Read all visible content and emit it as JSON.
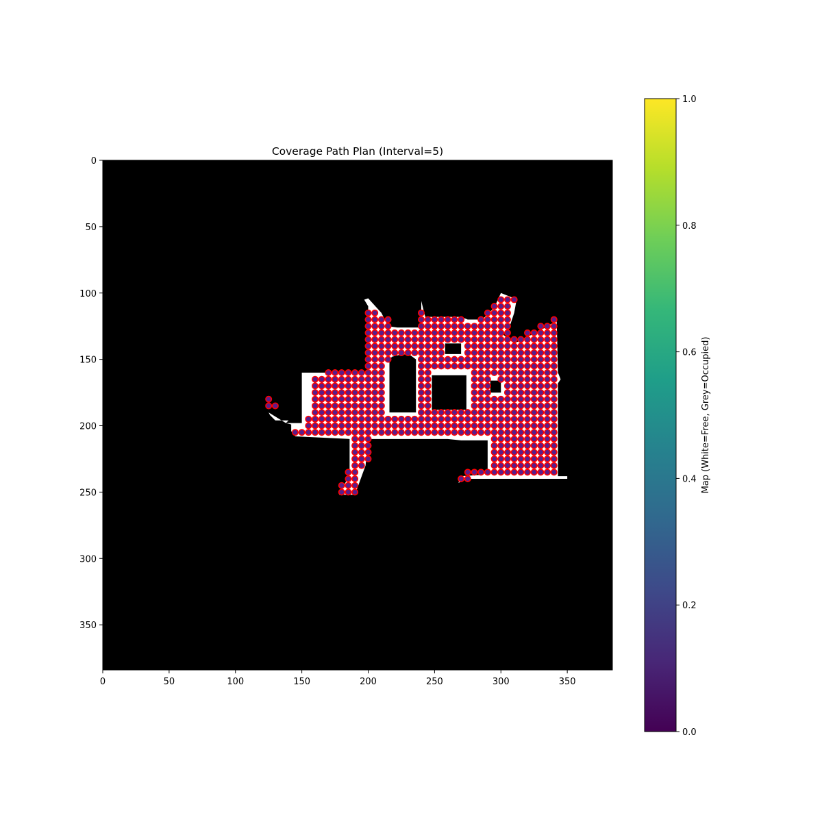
{
  "chart_data": {
    "type": "heatmap",
    "title": "Coverage Path Plan (Interval=5)",
    "image_extent": [
      384,
      384
    ],
    "xlim": [
      0,
      384
    ],
    "ylim": [
      384,
      0
    ],
    "x_ticks": [
      0,
      50,
      100,
      150,
      200,
      250,
      300,
      350
    ],
    "y_ticks": [
      0,
      50,
      100,
      150,
      200,
      250,
      300,
      350
    ],
    "grid": false,
    "background_color": "#000000",
    "free_color": "#ffffff",
    "point_fill": "#5b1d8a",
    "point_edge": "#ff0000",
    "colorbar": {
      "label": "Map (White=Free, Grey=Occupied)",
      "ticks": [
        "0.0",
        "0.2",
        "0.4",
        "0.6",
        "0.8",
        "1.0"
      ],
      "range": [
        0,
        1
      ],
      "colormap": "viridis",
      "stops": [
        "#440154",
        "#482777",
        "#3e4989",
        "#31688e",
        "#26828e",
        "#1f9e89",
        "#35b779",
        "#6ece58",
        "#b5de2b",
        "#fde725"
      ]
    },
    "free_polygons": [
      [
        [
          150,
          160
        ],
        [
          200,
          160
        ],
        [
          200,
          110
        ],
        [
          197,
          105
        ],
        [
          200,
          104
        ],
        [
          210,
          115
        ],
        [
          215,
          125
        ],
        [
          222,
          126
        ],
        [
          240,
          126
        ],
        [
          240,
          106
        ],
        [
          243,
          118
        ],
        [
          270,
          118
        ],
        [
          275,
          120
        ],
        [
          286,
          120
        ],
        [
          295,
          111
        ],
        [
          300,
          100
        ],
        [
          310,
          104
        ],
        [
          312,
          104
        ],
        [
          310,
          115
        ],
        [
          305,
          130
        ],
        [
          300,
          130
        ],
        [
          310,
          138
        ],
        [
          330,
          128
        ],
        [
          340,
          122
        ],
        [
          342,
          120
        ],
        [
          343,
          160
        ],
        [
          345,
          165
        ],
        [
          343,
          168
        ],
        [
          343,
          238
        ],
        [
          350,
          238
        ],
        [
          350,
          240
        ],
        [
          275,
          240
        ],
        [
          268,
          243
        ],
        [
          270,
          238
        ],
        [
          285,
          237
        ],
        [
          290,
          235
        ],
        [
          290,
          211
        ],
        [
          270,
          211
        ],
        [
          260,
          210
        ],
        [
          200,
          210
        ],
        [
          200,
          212
        ],
        [
          198,
          230
        ],
        [
          190,
          252
        ],
        [
          178,
          252
        ],
        [
          186,
          237
        ],
        [
          186,
          210
        ],
        [
          145,
          208
        ],
        [
          142,
          204
        ],
        [
          142,
          199
        ],
        [
          138,
          198
        ],
        [
          140,
          196
        ],
        [
          130,
          196
        ],
        [
          126,
          192
        ],
        [
          125,
          190
        ],
        [
          138,
          198
        ],
        [
          150,
          198
        ]
      ]
    ],
    "obstacles": [
      [
        [
          216,
          150
        ],
        [
          218,
          148
        ],
        [
          226,
          146
        ],
        [
          232,
          147
        ],
        [
          236,
          150
        ],
        [
          236,
          190
        ],
        [
          216,
          190
        ]
      ],
      [
        [
          248,
          162
        ],
        [
          274,
          162
        ],
        [
          274,
          188
        ],
        [
          248,
          188
        ]
      ],
      [
        [
          258,
          138
        ],
        [
          270,
          138
        ],
        [
          270,
          146
        ],
        [
          258,
          146
        ]
      ],
      [
        [
          292,
          166
        ],
        [
          300,
          166
        ],
        [
          300,
          175
        ],
        [
          292,
          175
        ]
      ]
    ],
    "interval": 5,
    "points": [
      {
        "y": 105,
        "xs": [
          300,
          305,
          310
        ]
      },
      {
        "y": 110,
        "xs": [
          295,
          300,
          305
        ]
      },
      {
        "y": 115,
        "xs": [
          200,
          205,
          240,
          290,
          295,
          300,
          305
        ]
      },
      {
        "y": 120,
        "xs": [
          200,
          205,
          210,
          215,
          240,
          245,
          250,
          255,
          260,
          265,
          270,
          285,
          290,
          295,
          300,
          305,
          340
        ]
      },
      {
        "y": 125,
        "xs": [
          200,
          205,
          210,
          215,
          240,
          245,
          250,
          255,
          260,
          265,
          270,
          275,
          280,
          285,
          290,
          295,
          300,
          305,
          330,
          335,
          340
        ]
      },
      {
        "y": 130,
        "xs": [
          200,
          205,
          210,
          215,
          220,
          225,
          230,
          235,
          240,
          245,
          250,
          255,
          260,
          265,
          270,
          275,
          280,
          285,
          290,
          295,
          300,
          305,
          320,
          325,
          330,
          335,
          340
        ]
      },
      {
        "y": 135,
        "xs": [
          200,
          205,
          210,
          215,
          220,
          225,
          230,
          235,
          240,
          245,
          250,
          255,
          260,
          265,
          270,
          275,
          280,
          285,
          290,
          295,
          300,
          305,
          310,
          315,
          320,
          325,
          330,
          335,
          340
        ]
      },
      {
        "y": 140,
        "xs": [
          200,
          205,
          210,
          215,
          220,
          225,
          230,
          235,
          240,
          245,
          250,
          255,
          275,
          280,
          285,
          290,
          295,
          300,
          305,
          310,
          315,
          320,
          325,
          330,
          335,
          340
        ]
      },
      {
        "y": 145,
        "xs": [
          200,
          205,
          210,
          215,
          220,
          225,
          230,
          235,
          240,
          245,
          250,
          255,
          275,
          280,
          285,
          290,
          295,
          300,
          305,
          310,
          315,
          320,
          325,
          330,
          335,
          340
        ]
      },
      {
        "y": 150,
        "xs": [
          200,
          205,
          210,
          215,
          240,
          245,
          250,
          255,
          260,
          265,
          270,
          275,
          280,
          285,
          290,
          295,
          300,
          305,
          310,
          315,
          320,
          325,
          330,
          335,
          340
        ]
      },
      {
        "y": 155,
        "xs": [
          200,
          205,
          210,
          240,
          245,
          250,
          255,
          260,
          265,
          270,
          275,
          280,
          285,
          290,
          295,
          300,
          305,
          310,
          315,
          320,
          325,
          330,
          335,
          340
        ]
      },
      {
        "y": 160,
        "xs": [
          170,
          175,
          180,
          185,
          190,
          195,
          200,
          205,
          210,
          240,
          245,
          280,
          285,
          290,
          295,
          300,
          305,
          310,
          315,
          320,
          325,
          330,
          335,
          340
        ]
      },
      {
        "y": 165,
        "xs": [
          160,
          165,
          170,
          175,
          180,
          185,
          190,
          195,
          200,
          205,
          210,
          240,
          245,
          280,
          285,
          290,
          300,
          305,
          310,
          315,
          320,
          325,
          330,
          335,
          340
        ]
      },
      {
        "y": 170,
        "xs": [
          160,
          165,
          170,
          175,
          180,
          185,
          190,
          195,
          200,
          205,
          210,
          240,
          245,
          280,
          285,
          290,
          305,
          310,
          315,
          320,
          325,
          330,
          335,
          340
        ]
      },
      {
        "y": 175,
        "xs": [
          160,
          165,
          170,
          175,
          180,
          185,
          190,
          195,
          200,
          205,
          210,
          240,
          245,
          280,
          285,
          290,
          305,
          310,
          315,
          320,
          325,
          330,
          335,
          340
        ]
      },
      {
        "y": 180,
        "xs": [
          125,
          160,
          165,
          170,
          175,
          180,
          185,
          190,
          195,
          200,
          205,
          210,
          240,
          245,
          280,
          285,
          290,
          295,
          300,
          305,
          310,
          315,
          320,
          325,
          330,
          335,
          340
        ]
      },
      {
        "y": 185,
        "xs": [
          125,
          130,
          160,
          165,
          170,
          175,
          180,
          185,
          190,
          195,
          200,
          205,
          210,
          240,
          245,
          280,
          285,
          290,
          295,
          300,
          305,
          310,
          315,
          320,
          325,
          330,
          335,
          340
        ]
      },
      {
        "y": 190,
        "xs": [
          160,
          165,
          170,
          175,
          180,
          185,
          190,
          195,
          200,
          205,
          210,
          240,
          245,
          250,
          255,
          260,
          265,
          270,
          275,
          280,
          285,
          290,
          295,
          300,
          305,
          310,
          315,
          320,
          325,
          330,
          335,
          340
        ]
      },
      {
        "y": 195,
        "xs": [
          155,
          160,
          165,
          170,
          175,
          180,
          185,
          190,
          195,
          200,
          205,
          210,
          215,
          220,
          225,
          230,
          235,
          240,
          245,
          250,
          255,
          260,
          265,
          270,
          275,
          280,
          285,
          290,
          295,
          300,
          305,
          310,
          315,
          320,
          325,
          330,
          335,
          340
        ]
      },
      {
        "y": 200,
        "xs": [
          155,
          160,
          165,
          170,
          175,
          180,
          185,
          190,
          195,
          200,
          205,
          210,
          215,
          220,
          225,
          230,
          235,
          240,
          245,
          250,
          255,
          260,
          265,
          270,
          275,
          280,
          285,
          290,
          295,
          300,
          305,
          310,
          315,
          320,
          325,
          330,
          335,
          340
        ]
      },
      {
        "y": 205,
        "xs": [
          145,
          150,
          155,
          160,
          165,
          170,
          175,
          180,
          185,
          190,
          195,
          200,
          205,
          210,
          215,
          220,
          225,
          230,
          235,
          240,
          245,
          250,
          255,
          260,
          265,
          270,
          275,
          280,
          285,
          290,
          295,
          300,
          305,
          310,
          315,
          320,
          325,
          330,
          335,
          340
        ]
      },
      {
        "y": 210,
        "xs": [
          190,
          195,
          200,
          295,
          300,
          305,
          310,
          315,
          320,
          325,
          330,
          335,
          340
        ]
      },
      {
        "y": 215,
        "xs": [
          190,
          195,
          200,
          295,
          300,
          305,
          310,
          315,
          320,
          325,
          330,
          335,
          340
        ]
      },
      {
        "y": 220,
        "xs": [
          190,
          195,
          200,
          295,
          300,
          305,
          310,
          315,
          320,
          325,
          330,
          335,
          340
        ]
      },
      {
        "y": 225,
        "xs": [
          190,
          195,
          200,
          295,
          300,
          305,
          310,
          315,
          320,
          325,
          330,
          335,
          340
        ]
      },
      {
        "y": 230,
        "xs": [
          190,
          195,
          295,
          300,
          305,
          310,
          315,
          320,
          325,
          330,
          335,
          340
        ]
      },
      {
        "y": 235,
        "xs": [
          185,
          190,
          275,
          280,
          285,
          290,
          295,
          300,
          305,
          310,
          315,
          320,
          325,
          330,
          335,
          340
        ]
      },
      {
        "y": 240,
        "xs": [
          185,
          190,
          270,
          275
        ]
      },
      {
        "y": 245,
        "xs": [
          180,
          185,
          190
        ]
      },
      {
        "y": 250,
        "xs": [
          180,
          185,
          190
        ]
      }
    ]
  }
}
